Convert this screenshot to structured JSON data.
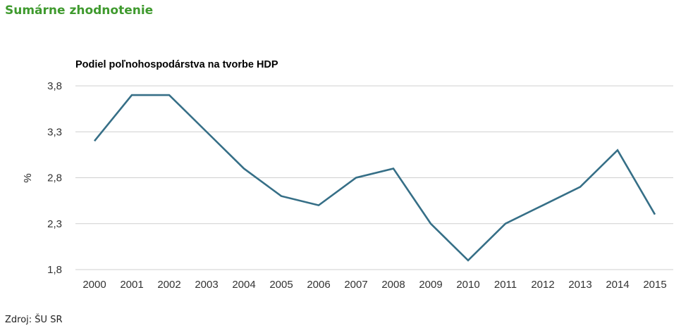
{
  "page": {
    "section_title": "Sumárne zhodnotenie",
    "source": "Zdroj: ŠU SR"
  },
  "chart_data": {
    "type": "line",
    "title": "Podiel poľnohospodárstva na tvorbe HDP",
    "xlabel": "",
    "ylabel": "%",
    "categories": [
      "2000",
      "2001",
      "2002",
      "2003",
      "2004",
      "2005",
      "2006",
      "2007",
      "2008",
      "2009",
      "2010",
      "2011",
      "2012",
      "2013",
      "2014",
      "2015"
    ],
    "series": [
      {
        "name": "Podiel poľnohospodárstva na tvorbe HDP",
        "color": "#366f87",
        "values": [
          3.2,
          3.7,
          3.7,
          3.3,
          2.9,
          2.6,
          2.5,
          2.8,
          2.9,
          2.3,
          1.9,
          2.3,
          2.5,
          2.7,
          3.1,
          2.4
        ]
      }
    ],
    "ylim": [
      1.8,
      3.8
    ],
    "yticks": [
      1.8,
      2.3,
      2.8,
      3.3,
      3.8
    ],
    "ytick_labels": [
      "1,8",
      "2,3",
      "2,8",
      "3,3",
      "3,8"
    ],
    "grid": true,
    "legend": "none"
  }
}
